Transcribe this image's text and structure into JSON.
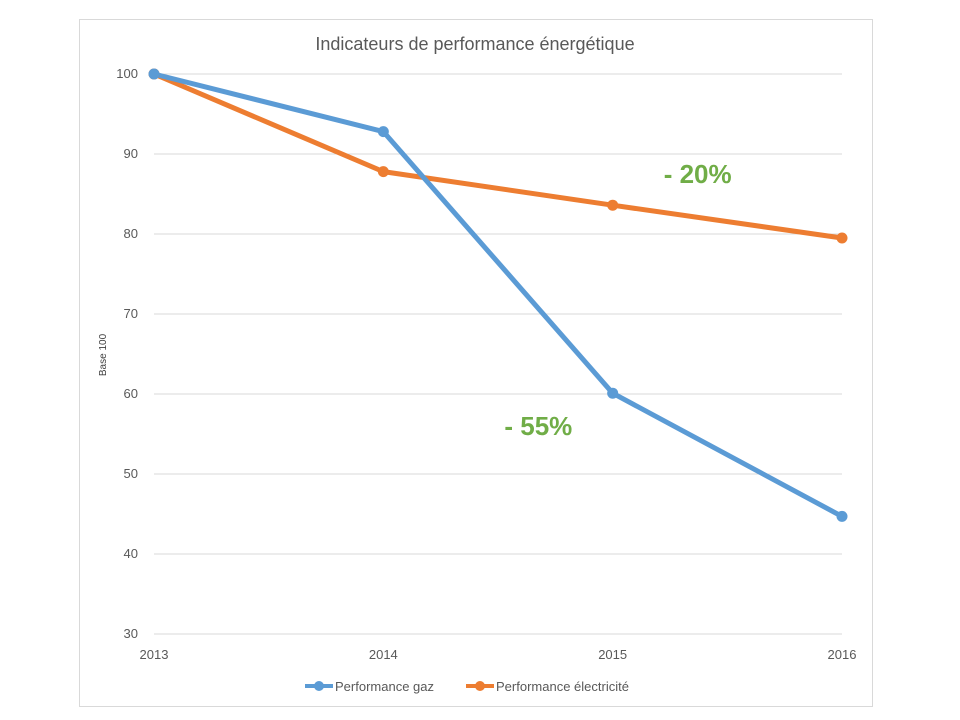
{
  "chart_data": {
    "type": "line",
    "title": "Indicateurs de performance énergétique",
    "xlabel": "",
    "ylabel": "Base 100",
    "x": [
      "2013",
      "2014",
      "2015",
      "2016"
    ],
    "ylim": [
      30,
      100
    ],
    "yticks": [
      30,
      40,
      50,
      60,
      70,
      80,
      90,
      100
    ],
    "grid": true,
    "legend_position": "bottom",
    "series": [
      {
        "name": "Performance gaz",
        "color": "#5b9bd5",
        "values": [
          100,
          92.8,
          60.1,
          44.7
        ]
      },
      {
        "name": "Performance électricité",
        "color": "#ed7d31",
        "values": [
          100,
          87.8,
          83.6,
          79.5
        ]
      }
    ],
    "annotations": [
      {
        "text": "- 20%",
        "color": "#70ad47",
        "x": "2015",
        "y": 87.5
      },
      {
        "text": "- 55%",
        "color": "#70ad47",
        "x": "2014",
        "y": 56
      }
    ]
  }
}
